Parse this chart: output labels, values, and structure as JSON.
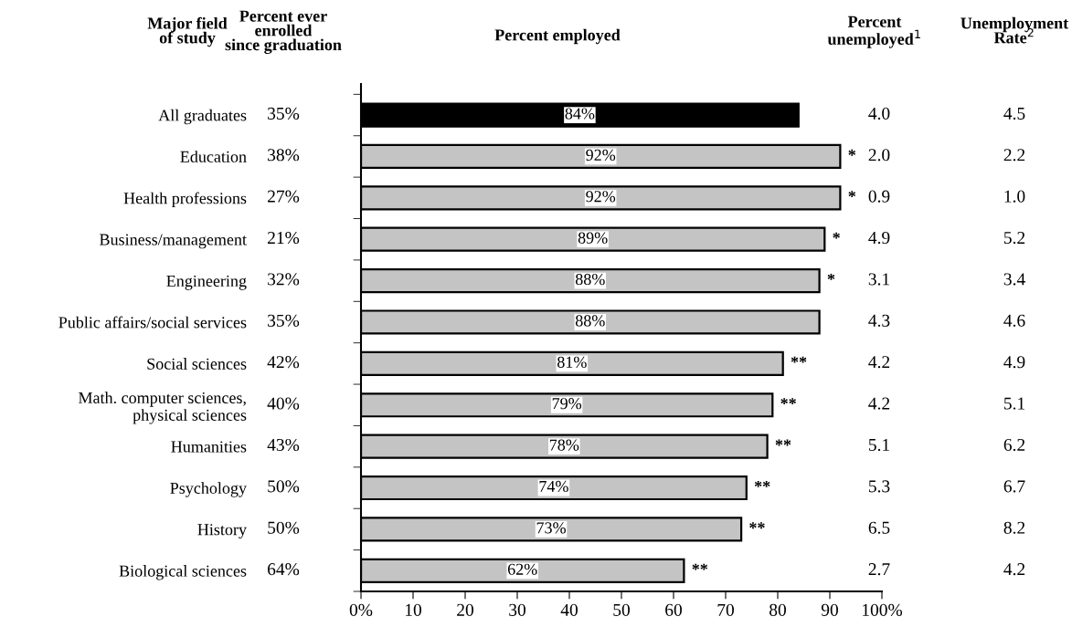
{
  "chart_data": {
    "type": "bar",
    "orientation": "horizontal",
    "title": "Percent employed",
    "categories": [
      "All graduates",
      "Education",
      "Health professions",
      "Business/management",
      "Engineering",
      "Public affairs/social services",
      "Social sciences",
      "Math. computer sciences,\nphysical sciences",
      "Humanities",
      "Psychology",
      "History",
      "Biological sciences"
    ],
    "values": [
      84,
      92,
      92,
      89,
      88,
      88,
      81,
      79,
      78,
      74,
      73,
      62
    ],
    "value_labels": [
      "84%",
      "92%",
      "92%",
      "89%",
      "88%",
      "88%",
      "81%",
      "79%",
      "78%",
      "74%",
      "73%",
      "62%"
    ],
    "colors": [
      "#000000",
      "#c4c4c4",
      "#c4c4c4",
      "#c4c4c4",
      "#c4c4c4",
      "#c4c4c4",
      "#c4c4c4",
      "#c4c4c4",
      "#c4c4c4",
      "#c4c4c4",
      "#c4c4c4",
      "#c4c4c4"
    ],
    "xlim": [
      0,
      100
    ],
    "xticks": [
      {
        "value": 0,
        "label": "0%"
      },
      {
        "value": 10,
        "label": "10"
      },
      {
        "value": 20,
        "label": "20"
      },
      {
        "value": 30,
        "label": "30"
      },
      {
        "value": 40,
        "label": "40"
      },
      {
        "value": 50,
        "label": "50"
      },
      {
        "value": 60,
        "label": "60"
      },
      {
        "value": 70,
        "label": "70"
      },
      {
        "value": 80,
        "label": "80"
      },
      {
        "value": 90,
        "label": "90"
      },
      {
        "value": 100,
        "label": "100%"
      }
    ],
    "annotations": [
      "Major field\nof study",
      "Percent ever\nenrolled\nsince graduation",
      "Percent\nunemployed$^{1}$",
      "Unemployment\nRate$^{2}$",
      "35%",
      "38%",
      "27%",
      "21%",
      "32%",
      "35%",
      "42%",
      "40%",
      "43%",
      "50%",
      "50%",
      "64%",
      "4.0",
      "2.0",
      "0.9",
      "4.9",
      "3.1",
      "4.3",
      "4.2",
      "4.2",
      "5.1",
      "5.3",
      "6.5",
      "2.7",
      "4.5",
      "2.2",
      "1.0",
      "5.2",
      "3.4",
      "4.6",
      "4.9",
      "5.1",
      "6.2",
      "6.7",
      "8.2",
      "4.2",
      {
        "text": "*",
        "x": 92,
        "y": "Education"
      },
      {
        "text": "*",
        "x": 92,
        "y": "Health professions"
      },
      {
        "text": "*",
        "x": 89,
        "y": "Business/management"
      },
      {
        "text": "*",
        "x": 88,
        "y": "Engineering"
      },
      {
        "text": "**",
        "x": 81,
        "y": "Social sciences"
      },
      {
        "text": "**",
        "x": 79,
        "y": "Math. computer sciences,\nphysical sciences"
      },
      {
        "text": "**",
        "x": 78,
        "y": "Humanities"
      },
      {
        "text": "**",
        "x": 74,
        "y": "Psychology"
      },
      {
        "text": "**",
        "x": 73,
        "y": "History"
      },
      {
        "text": "**",
        "x": 62,
        "y": "Biological sciences"
      }
    ]
  }
}
